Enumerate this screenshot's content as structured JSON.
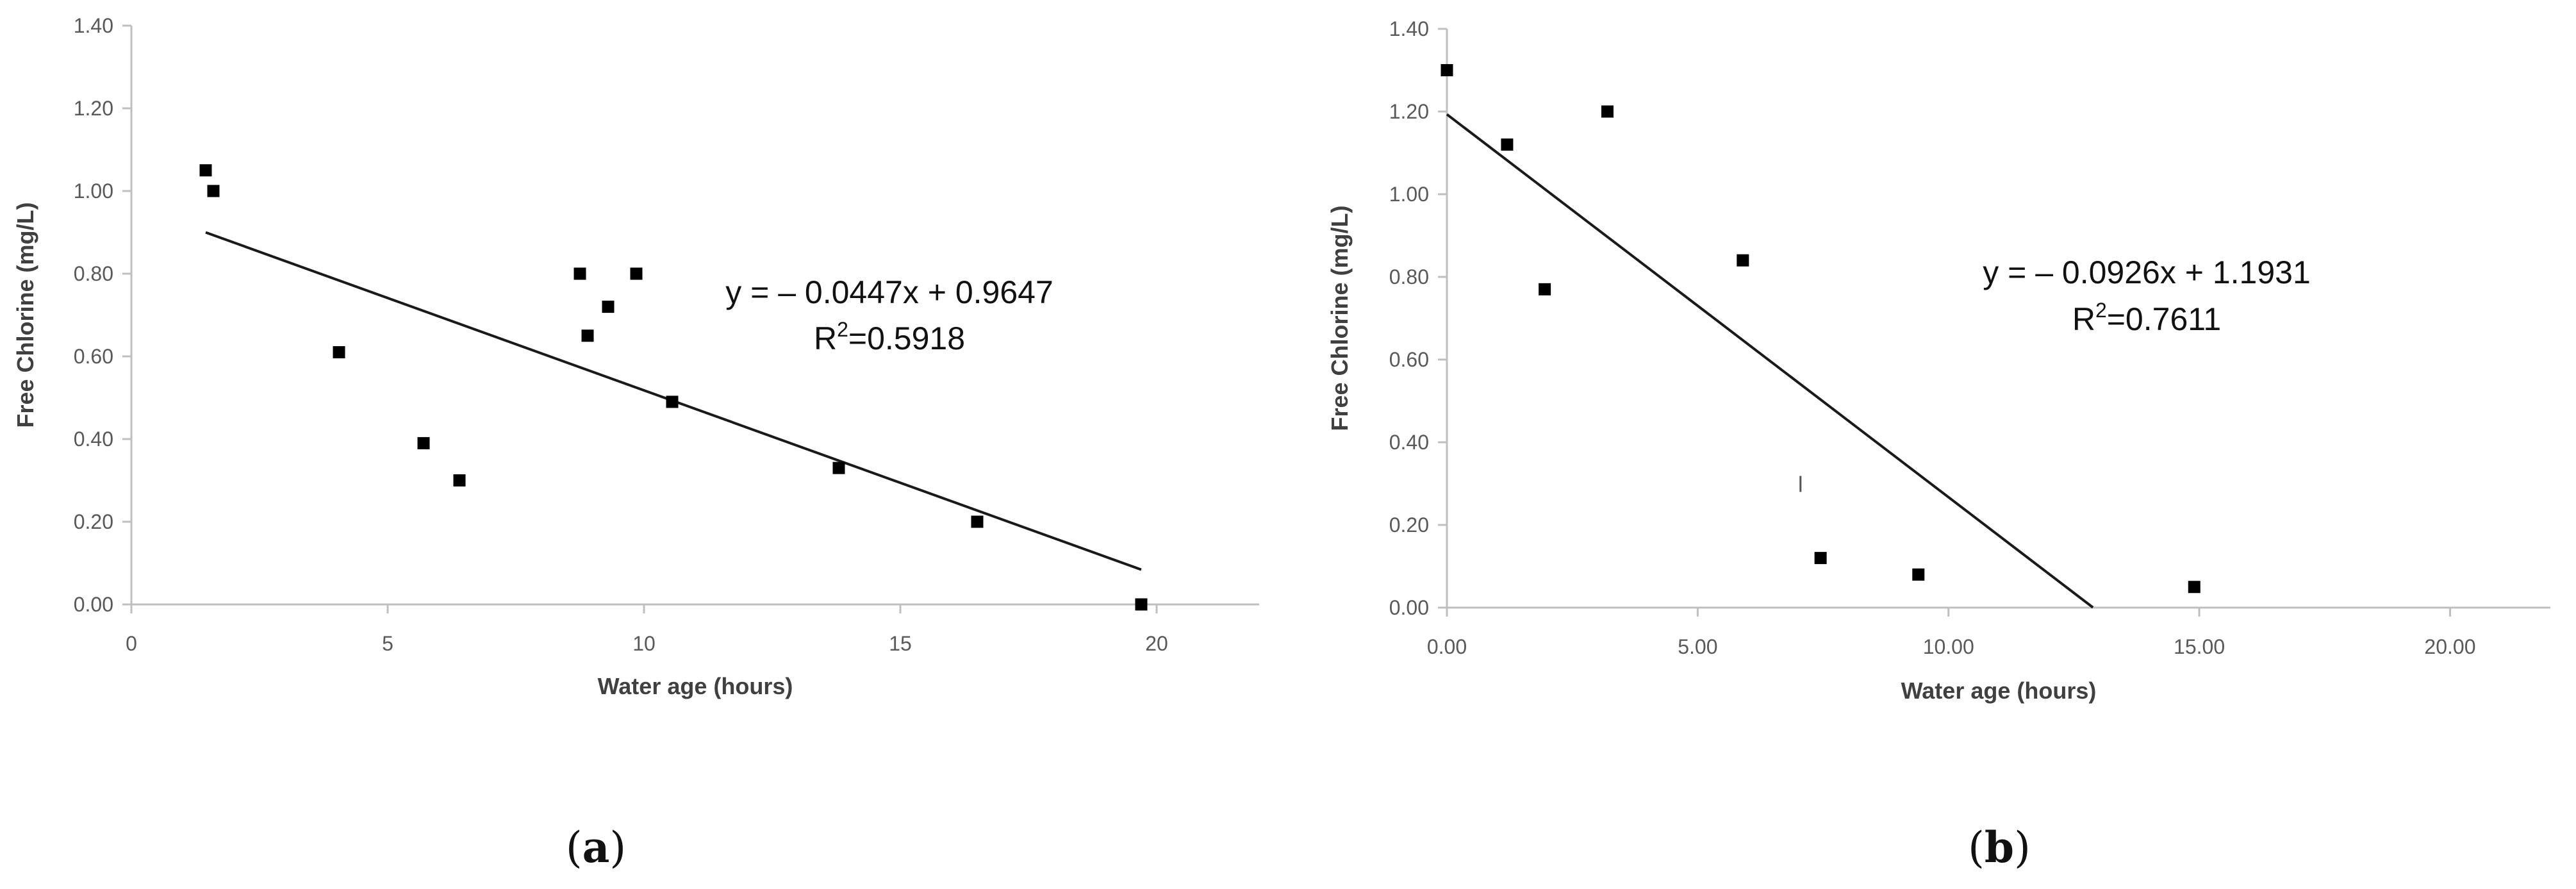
{
  "colors": {
    "axis": "#bfbfbf",
    "tick_text": "#595959",
    "axis_title": "#404040",
    "marker": "#000000",
    "trendline": "#1a1a1a"
  },
  "chart_data": [
    {
      "type": "scatter",
      "panel_label": "a",
      "xlabel": "Water age (hours)",
      "ylabel": "Free Chlorine (mg/L)",
      "xlim": [
        0,
        22
      ],
      "ylim": [
        0,
        1.4
      ],
      "x_ticks": [
        0,
        5,
        10,
        15,
        20
      ],
      "x_tick_labels": [
        "0",
        "5",
        "10",
        "15",
        "20"
      ],
      "y_ticks": [
        0,
        0.2,
        0.4,
        0.6,
        0.8,
        1.0,
        1.2,
        1.4
      ],
      "y_tick_labels": [
        "0.00",
        "0.20",
        "0.40",
        "0.60",
        "0.80",
        "1.00",
        "1.20",
        "1.40"
      ],
      "grid": false,
      "legend": "none",
      "marker": "square",
      "points": [
        {
          "x": 1.45,
          "y": 1.05
        },
        {
          "x": 1.6,
          "y": 1.0
        },
        {
          "x": 4.05,
          "y": 0.61
        },
        {
          "x": 5.7,
          "y": 0.39
        },
        {
          "x": 6.4,
          "y": 0.3
        },
        {
          "x": 8.75,
          "y": 0.8
        },
        {
          "x": 8.9,
          "y": 0.65
        },
        {
          "x": 9.3,
          "y": 0.72
        },
        {
          "x": 9.85,
          "y": 0.8
        },
        {
          "x": 10.55,
          "y": 0.49
        },
        {
          "x": 13.8,
          "y": 0.33
        },
        {
          "x": 16.5,
          "y": 0.2
        },
        {
          "x": 19.7,
          "y": 0.0
        }
      ],
      "trendline": {
        "slope": -0.0447,
        "intercept": 0.9647,
        "x_range": [
          1.45,
          19.7
        ]
      },
      "annotation": {
        "equation": "y = – 0.0447x + 0.9647",
        "r2_prefix": "R",
        "r2_sup": "2",
        "r2_value": "=0.5918"
      }
    },
    {
      "type": "scatter",
      "panel_label": "b",
      "xlabel": "Water age (hours)",
      "ylabel": "Free Chlorine (mg/L)",
      "xlim": [
        0,
        22
      ],
      "ylim": [
        0,
        1.4
      ],
      "x_ticks": [
        0,
        5,
        10,
        15,
        20
      ],
      "x_tick_labels": [
        "0.00",
        "5.00",
        "10.00",
        "15.00",
        "20.00"
      ],
      "y_ticks": [
        0,
        0.2,
        0.4,
        0.6,
        0.8,
        1.0,
        1.2,
        1.4
      ],
      "y_tick_labels": [
        "0.00",
        "0.20",
        "0.40",
        "0.60",
        "0.80",
        "1.00",
        "1.20",
        "1.40"
      ],
      "grid": false,
      "legend": "none",
      "marker": "square",
      "points": [
        {
          "x": 0.0,
          "y": 1.3
        },
        {
          "x": 1.2,
          "y": 1.12
        },
        {
          "x": 1.95,
          "y": 0.77
        },
        {
          "x": 3.2,
          "y": 1.2
        },
        {
          "x": 5.9,
          "y": 0.84
        },
        {
          "x": 7.45,
          "y": 0.12
        },
        {
          "x": 9.4,
          "y": 0.08
        },
        {
          "x": 14.9,
          "y": 0.05
        }
      ],
      "trendline": {
        "slope": -0.0926,
        "intercept": 1.1931,
        "x_range": [
          0,
          12.88
        ]
      },
      "annotation": {
        "equation": "y = – 0.0926x + 1.1931",
        "r2_prefix": "R",
        "r2_sup": "2",
        "r2_value": "=0.7611"
      },
      "stray_mark": {
        "text": "l",
        "x": 7.05,
        "y": 0.28
      }
    }
  ]
}
